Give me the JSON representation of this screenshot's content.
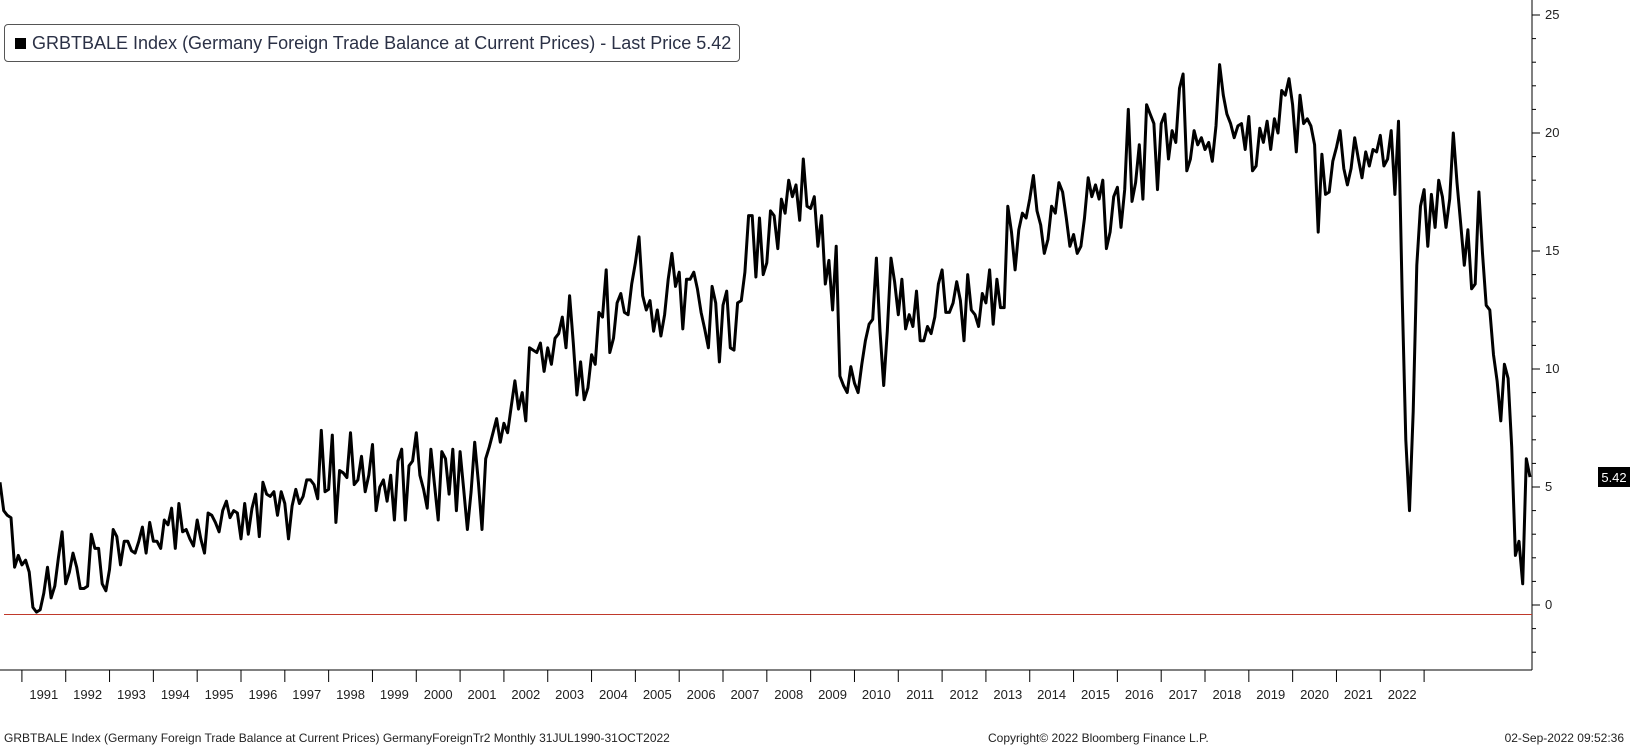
{
  "legend": {
    "text": "GRBTBALE Index (Germany Foreign Trade Balance at Current Prices) - Last Price 5.42"
  },
  "footer": {
    "left": "GRBTBALE Index (Germany Foreign Trade Balance at Current Prices) GermanyForeignTr2  Monthly 31JUL1990-31OCT2022",
    "center": "Copyright© 2022 Bloomberg Finance L.P.",
    "right": "02-Sep-2022 09:52:36"
  },
  "last_price_tag": "5.42",
  "chart_data": {
    "type": "line",
    "title": "GRBTBALE Index (Germany Foreign Trade Balance at Current Prices)",
    "xlabel": "",
    "ylabel": "",
    "ylim": [
      -2.5,
      25.5
    ],
    "y_ticks": [
      0,
      5,
      10,
      15,
      20,
      25
    ],
    "x_ticks": [
      "1991",
      "1992",
      "1993",
      "1994",
      "1995",
      "1996",
      "1997",
      "1998",
      "1999",
      "2000",
      "2001",
      "2002",
      "2003",
      "2004",
      "2005",
      "2006",
      "2007",
      "2008",
      "2009",
      "2010",
      "2011",
      "2012",
      "2013",
      "2014",
      "2015",
      "2016",
      "2017",
      "2018",
      "2019",
      "2020",
      "2021",
      "2022"
    ],
    "grid": false,
    "legend_position": "top-left",
    "reference_line": {
      "y": -0.4,
      "color": "#c0392b"
    },
    "last_value": 5.42,
    "series": [
      {
        "color": "#000000",
        "start": "1990-07",
        "frequency": "monthly",
        "values": [
          5.2,
          4.0,
          3.8,
          3.7,
          1.6,
          2.1,
          1.7,
          1.9,
          1.4,
          -0.1,
          -0.3,
          -0.2,
          0.5,
          1.6,
          0.3,
          0.8,
          2.0,
          3.1,
          0.9,
          1.4,
          2.2,
          1.6,
          0.7,
          0.7,
          0.8,
          3.0,
          2.4,
          2.4,
          0.9,
          0.6,
          1.5,
          3.2,
          2.9,
          1.7,
          2.7,
          2.7,
          2.3,
          2.2,
          2.7,
          3.3,
          2.2,
          3.5,
          2.7,
          2.7,
          2.4,
          3.6,
          3.4,
          4.1,
          2.4,
          4.3,
          3.1,
          3.2,
          2.8,
          2.5,
          3.6,
          2.8,
          2.2,
          3.9,
          3.8,
          3.5,
          3.1,
          4.0,
          4.4,
          3.7,
          4.0,
          3.9,
          2.8,
          4.3,
          3.0,
          4.1,
          4.7,
          2.9,
          5.2,
          4.7,
          4.6,
          4.8,
          3.8,
          4.8,
          4.3,
          2.8,
          4.2,
          4.9,
          4.3,
          4.6,
          5.3,
          5.3,
          5.1,
          4.5,
          7.4,
          4.8,
          4.9,
          7.2,
          3.5,
          5.7,
          5.6,
          5.4,
          7.3,
          5.1,
          5.3,
          6.3,
          4.8,
          5.5,
          6.8,
          4.0,
          5.0,
          5.3,
          4.4,
          5.5,
          3.6,
          6.1,
          6.6,
          3.6,
          5.9,
          6.1,
          7.3,
          5.5,
          4.9,
          4.1,
          6.6,
          5.1,
          3.6,
          6.5,
          6.2,
          4.7,
          6.6,
          4.0,
          6.5,
          4.9,
          3.2,
          4.8,
          6.9,
          5.2,
          3.2,
          6.2,
          6.7,
          7.3,
          7.9,
          6.9,
          7.7,
          7.3,
          8.4,
          9.5,
          8.3,
          9.0,
          7.8,
          10.9,
          10.8,
          10.7,
          11.1,
          9.9,
          10.9,
          10.2,
          11.3,
          11.5,
          12.2,
          10.9,
          13.1,
          11.1,
          8.9,
          10.3,
          8.7,
          9.2,
          10.6,
          10.2,
          12.4,
          12.2,
          14.2,
          10.7,
          11.3,
          12.8,
          13.2,
          12.4,
          12.3,
          13.6,
          14.5,
          15.6,
          13.1,
          12.5,
          12.9,
          11.6,
          12.5,
          11.4,
          12.3,
          13.8,
          14.9,
          13.5,
          14.1,
          11.7,
          13.8,
          13.8,
          14.1,
          13.4,
          12.4,
          11.7,
          10.9,
          13.5,
          12.8,
          10.3,
          12.7,
          13.3,
          10.9,
          10.8,
          12.8,
          12.9,
          14.1,
          16.5,
          16.5,
          13.9,
          16.4,
          14.0,
          14.5,
          16.7,
          16.5,
          15.1,
          17.2,
          16.6,
          18.0,
          17.3,
          17.8,
          16.3,
          18.9,
          16.9,
          16.8,
          17.3,
          15.2,
          16.5,
          13.6,
          14.6,
          12.5,
          15.2,
          9.7,
          9.3,
          9.0,
          10.1,
          9.4,
          9.0,
          10.2,
          11.2,
          11.9,
          12.1,
          14.7,
          11.6,
          9.3,
          11.6,
          14.7,
          13.7,
          12.3,
          13.8,
          11.7,
          12.3,
          11.8,
          13.3,
          11.2,
          11.2,
          11.8,
          11.5,
          12.2,
          13.6,
          14.2,
          12.4,
          12.4,
          12.8,
          13.7,
          12.9,
          11.2,
          14.0,
          12.5,
          12.3,
          11.8,
          13.2,
          12.8,
          14.2,
          11.9,
          13.8,
          12.6,
          12.6,
          16.9,
          15.8,
          14.2,
          15.9,
          16.6,
          16.4,
          17.2,
          18.2,
          16.7,
          16.1,
          14.9,
          15.5,
          16.9,
          16.6,
          17.9,
          17.5,
          16.4,
          15.2,
          15.7,
          14.9,
          15.2,
          16.4,
          18.1,
          17.3,
          17.8,
          17.2,
          18.0,
          15.1,
          15.8,
          17.3,
          17.7,
          16.0,
          17.6,
          21.0,
          17.1,
          17.9,
          19.5,
          17.2,
          21.2,
          20.8,
          20.4,
          17.6,
          20.4,
          20.8,
          18.9,
          20.1,
          19.6,
          21.9,
          22.5,
          18.4,
          18.9,
          20.1,
          19.5,
          19.8,
          19.3,
          19.6,
          18.8,
          20.3,
          22.9,
          21.6,
          20.8,
          20.4,
          19.8,
          20.3,
          20.4,
          19.3,
          20.7,
          18.4,
          18.6,
          20.2,
          19.6,
          20.5,
          19.3,
          20.6,
          20.0,
          21.8,
          21.6,
          22.3,
          21.2,
          19.2,
          21.6,
          20.4,
          20.6,
          20.3,
          19.5,
          15.8,
          19.1,
          17.4,
          17.5,
          18.8,
          19.4,
          20.1,
          18.5,
          17.8,
          18.5,
          19.8,
          18.9,
          18.1,
          19.2,
          18.6,
          19.3,
          19.2,
          19.9,
          18.6,
          18.9,
          20.1,
          17.4,
          20.5,
          13.1,
          7.0,
          4.0,
          8.2,
          14.4,
          16.9,
          17.6,
          15.2,
          17.4,
          16.0,
          18.0,
          17.3,
          16.0,
          17.2,
          20.0,
          17.9,
          16.2,
          14.4,
          15.9,
          13.4,
          13.6,
          17.5,
          14.9,
          12.7,
          12.5,
          10.6,
          9.5,
          7.8,
          10.2,
          9.6,
          6.7,
          2.1,
          2.7,
          0.9,
          6.2,
          5.42
        ]
      }
    ]
  }
}
